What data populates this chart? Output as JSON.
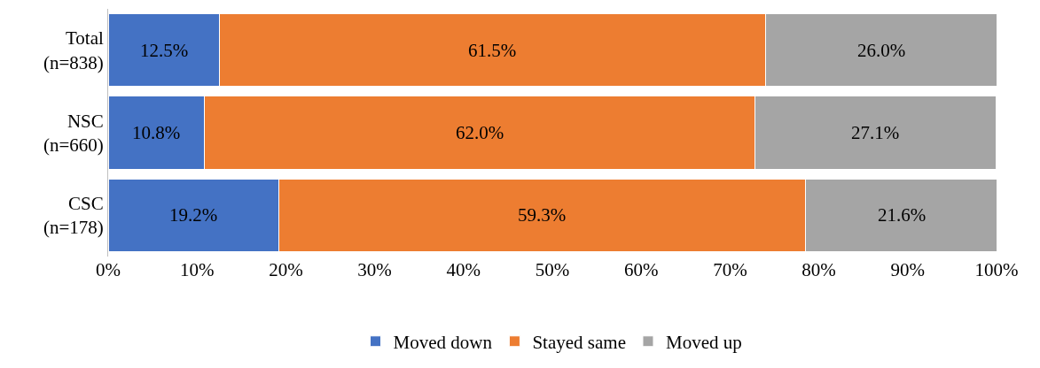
{
  "chart_data": {
    "type": "bar",
    "orientation": "horizontal",
    "stacked": true,
    "categories": [
      "Total\n(n=838)",
      "NSC\n(n=660)",
      "CSC\n(n=178)"
    ],
    "series": [
      {
        "name": "Moved down",
        "color": "#4472c4",
        "values": [
          12.5,
          10.8,
          19.2
        ],
        "value_labels": [
          "12.5%",
          "10.8%",
          "19.2%"
        ]
      },
      {
        "name": "Stayed same",
        "color": "#ed7d31",
        "values": [
          61.5,
          62.0,
          59.3
        ],
        "value_labels": [
          "61.5%",
          "62.0%",
          "59.3%"
        ]
      },
      {
        "name": "Moved up",
        "color": "#a5a5a5",
        "values": [
          26.0,
          27.1,
          21.6
        ],
        "value_labels": [
          "26.0%",
          "27.1%",
          "21.6%"
        ]
      }
    ],
    "xlim": [
      0,
      100
    ],
    "xticks": [
      {
        "value": 0,
        "label": "0%"
      },
      {
        "value": 10,
        "label": "10%"
      },
      {
        "value": 20,
        "label": "20%"
      },
      {
        "value": 30,
        "label": "30%"
      },
      {
        "value": 40,
        "label": "40%"
      },
      {
        "value": 50,
        "label": "50%"
      },
      {
        "value": 60,
        "label": "60%"
      },
      {
        "value": 70,
        "label": "70%"
      },
      {
        "value": 80,
        "label": "80%"
      },
      {
        "value": 90,
        "label": "90%"
      },
      {
        "value": 100,
        "label": "100%"
      }
    ],
    "grid": false,
    "legend": "bottom"
  }
}
